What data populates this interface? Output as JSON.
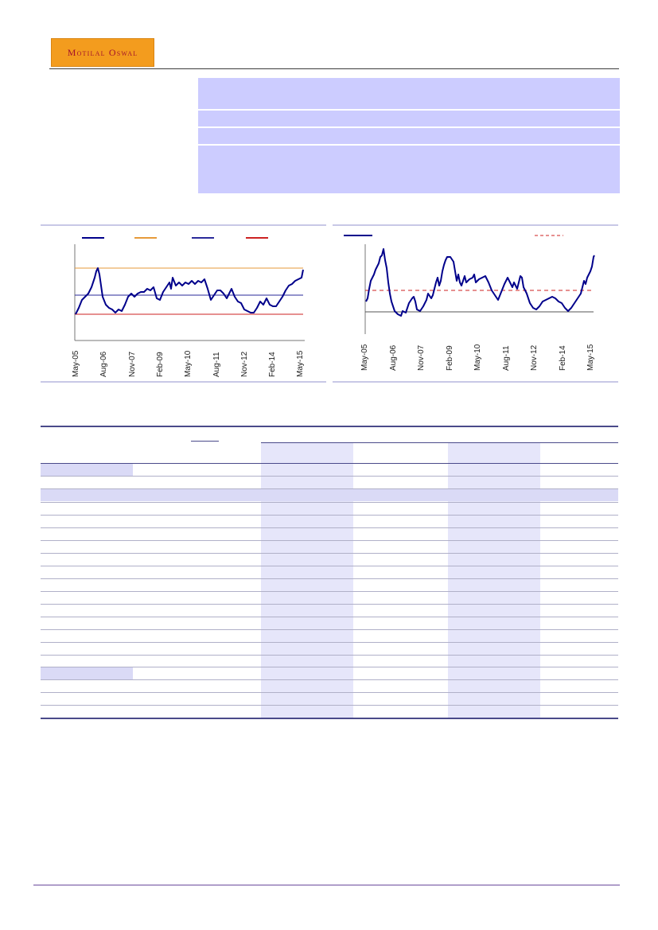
{
  "header": {
    "logo_text": "Motilal Oswal"
  },
  "charts": [
    {
      "type": "line",
      "x_ticks": [
        "May-05",
        "Aug-06",
        "Nov-07",
        "Feb-09",
        "May-10",
        "Aug-11",
        "Nov-12",
        "Feb-14",
        "May-15"
      ],
      "legend_colors": [
        "#00008b",
        "#e69a3a",
        "#2a2a9a",
        "#cc2222"
      ],
      "series_color": "#00008b",
      "ref_lines": {
        "upper_color": "#e69a3a",
        "mid_color": "#2a2a9a",
        "lower_color": "#cc2222"
      },
      "grid": false
    },
    {
      "type": "line",
      "x_ticks": [
        "May-05",
        "Aug-06",
        "Nov-07",
        "Feb-09",
        "May-10",
        "Aug-11",
        "Nov-12",
        "Feb-14",
        "May-15"
      ],
      "legend_colors": [
        "#00008b",
        "#cc2222"
      ],
      "series_color": "#00008b",
      "ref_lines": {
        "dashed_color": "#cc2222",
        "base_color": "#555555"
      },
      "grid": false
    }
  ],
  "colors": {
    "accent": "#ccccff",
    "table_shade": "#e6e6fa",
    "rule": "#4a4a8a"
  }
}
